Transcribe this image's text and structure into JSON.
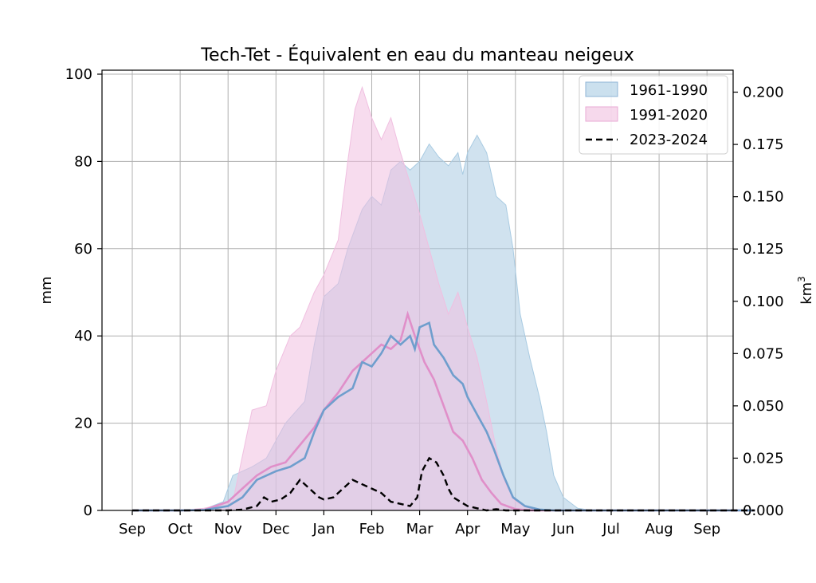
{
  "chart_data": {
    "type": "area",
    "title": "Tech-Tet - Équivalent en eau du manteau neigeux",
    "ylabel": "mm",
    "ylabel_right": "km",
    "ylabel_right_exp": "3",
    "x_tick_labels": [
      "Sep",
      "Oct",
      "Nov",
      "Dec",
      "Jan",
      "Feb",
      "Mar",
      "Apr",
      "May",
      "Jun",
      "Jul",
      "Aug",
      "Sep"
    ],
    "xlim": [
      0,
      13
    ],
    "ylim": [
      0,
      101
    ],
    "y_ticks": [
      0,
      20,
      40,
      60,
      80,
      100
    ],
    "y_ticks_right": [
      "0.000",
      "0.025",
      "0.050",
      "0.075",
      "0.100",
      "0.125",
      "0.150",
      "0.175",
      "0.200"
    ],
    "ylim_right": [
      0,
      0.2105
    ],
    "grid": true,
    "legend_position": "top-right",
    "colors": {
      "band_1961": "#a9cbe2",
      "band_1991": "#f0bfe0",
      "line_1961": "#6f9ecd",
      "line_1991": "#e08fc9",
      "line_2023": "#000000"
    },
    "legend": [
      {
        "label": "1961-1990",
        "style": "band_1961"
      },
      {
        "label": "1991-2020",
        "style": "band_1991"
      },
      {
        "label": "2023-2024",
        "style": "dashed"
      }
    ],
    "series": [
      {
        "name": "1961-1990",
        "band_upper": [
          [
            0,
            0
          ],
          [
            1,
            0
          ],
          [
            1.5,
            0.3
          ],
          [
            1.9,
            2
          ],
          [
            2.1,
            8
          ],
          [
            2.5,
            10
          ],
          [
            2.8,
            12
          ],
          [
            3.2,
            20
          ],
          [
            3.6,
            25
          ],
          [
            3.8,
            38
          ],
          [
            4.0,
            49
          ],
          [
            4.3,
            52
          ],
          [
            4.5,
            60
          ],
          [
            4.8,
            69
          ],
          [
            5.0,
            72
          ],
          [
            5.2,
            70
          ],
          [
            5.4,
            78
          ],
          [
            5.6,
            80
          ],
          [
            5.8,
            78
          ],
          [
            6.0,
            80
          ],
          [
            6.2,
            84
          ],
          [
            6.4,
            81
          ],
          [
            6.6,
            79
          ],
          [
            6.8,
            82
          ],
          [
            6.9,
            77
          ],
          [
            7.0,
            82
          ],
          [
            7.2,
            86
          ],
          [
            7.4,
            82
          ],
          [
            7.6,
            72
          ],
          [
            7.8,
            70
          ],
          [
            7.95,
            60
          ],
          [
            8.1,
            45
          ],
          [
            8.3,
            35
          ],
          [
            8.5,
            26
          ],
          [
            8.65,
            18
          ],
          [
            8.8,
            8
          ],
          [
            9.0,
            3
          ],
          [
            9.3,
            0.5
          ],
          [
            9.6,
            0
          ],
          [
            13,
            0
          ]
        ],
        "band_lower": [
          [
            0,
            0
          ],
          [
            13,
            0
          ]
        ],
        "median": [
          [
            0,
            0
          ],
          [
            1,
            0
          ],
          [
            1.5,
            0.1
          ],
          [
            2.0,
            1
          ],
          [
            2.3,
            3
          ],
          [
            2.6,
            7
          ],
          [
            3.0,
            9
          ],
          [
            3.3,
            10
          ],
          [
            3.6,
            12
          ],
          [
            3.8,
            18
          ],
          [
            4.0,
            23
          ],
          [
            4.3,
            26
          ],
          [
            4.6,
            28
          ],
          [
            4.8,
            34
          ],
          [
            5.0,
            33
          ],
          [
            5.2,
            36
          ],
          [
            5.4,
            40
          ],
          [
            5.6,
            38
          ],
          [
            5.8,
            40
          ],
          [
            5.9,
            37
          ],
          [
            6.0,
            42
          ],
          [
            6.2,
            43
          ],
          [
            6.3,
            38
          ],
          [
            6.5,
            35
          ],
          [
            6.7,
            31
          ],
          [
            6.9,
            29
          ],
          [
            7.0,
            26
          ],
          [
            7.2,
            22
          ],
          [
            7.4,
            18
          ],
          [
            7.55,
            14
          ],
          [
            7.75,
            8
          ],
          [
            7.95,
            3
          ],
          [
            8.2,
            1
          ],
          [
            8.5,
            0.2
          ],
          [
            8.8,
            0
          ],
          [
            13,
            0
          ]
        ]
      },
      {
        "name": "1991-2020",
        "band_upper": [
          [
            0,
            0
          ],
          [
            1,
            0
          ],
          [
            1.5,
            0.5
          ],
          [
            2.1,
            2
          ],
          [
            2.5,
            23
          ],
          [
            2.8,
            24
          ],
          [
            3.0,
            32
          ],
          [
            3.3,
            40
          ],
          [
            3.5,
            42
          ],
          [
            3.8,
            50
          ],
          [
            4.0,
            54
          ],
          [
            4.3,
            62
          ],
          [
            4.5,
            80
          ],
          [
            4.65,
            92
          ],
          [
            4.8,
            97
          ],
          [
            5.0,
            90
          ],
          [
            5.2,
            85
          ],
          [
            5.4,
            90
          ],
          [
            5.6,
            82
          ],
          [
            5.8,
            75
          ],
          [
            6.0,
            68
          ],
          [
            6.2,
            60
          ],
          [
            6.4,
            52
          ],
          [
            6.6,
            45
          ],
          [
            6.8,
            50
          ],
          [
            7.0,
            42
          ],
          [
            7.2,
            35
          ],
          [
            7.4,
            25
          ],
          [
            7.6,
            14
          ],
          [
            7.8,
            6
          ],
          [
            8.0,
            2
          ],
          [
            8.3,
            0.5
          ],
          [
            8.6,
            0
          ],
          [
            13,
            0
          ]
        ],
        "band_lower": [
          [
            0,
            0
          ],
          [
            13,
            0
          ]
        ],
        "median": [
          [
            0,
            0
          ],
          [
            1,
            0
          ],
          [
            1.5,
            0.1
          ],
          [
            2.0,
            2
          ],
          [
            2.3,
            5
          ],
          [
            2.6,
            8
          ],
          [
            2.9,
            10
          ],
          [
            3.2,
            11
          ],
          [
            3.5,
            15
          ],
          [
            3.8,
            19
          ],
          [
            4.0,
            23
          ],
          [
            4.3,
            27
          ],
          [
            4.6,
            32
          ],
          [
            4.8,
            34
          ],
          [
            5.0,
            36
          ],
          [
            5.2,
            38
          ],
          [
            5.4,
            37
          ],
          [
            5.6,
            39
          ],
          [
            5.75,
            45
          ],
          [
            5.9,
            40
          ],
          [
            6.1,
            34
          ],
          [
            6.3,
            30
          ],
          [
            6.5,
            24
          ],
          [
            6.7,
            18
          ],
          [
            6.9,
            16
          ],
          [
            7.1,
            12
          ],
          [
            7.3,
            7
          ],
          [
            7.5,
            4
          ],
          [
            7.7,
            1.5
          ],
          [
            8.0,
            0.3
          ],
          [
            8.3,
            0
          ],
          [
            13,
            0
          ]
        ]
      },
      {
        "name": "2023-2024",
        "values": [
          [
            0,
            0
          ],
          [
            1,
            0
          ],
          [
            2.0,
            0
          ],
          [
            2.3,
            0.2
          ],
          [
            2.6,
            1
          ],
          [
            2.75,
            3
          ],
          [
            2.9,
            2
          ],
          [
            3.1,
            2.5
          ],
          [
            3.3,
            4
          ],
          [
            3.5,
            7
          ],
          [
            3.7,
            5
          ],
          [
            3.9,
            3
          ],
          [
            4.0,
            2.5
          ],
          [
            4.2,
            3
          ],
          [
            4.4,
            5
          ],
          [
            4.6,
            7
          ],
          [
            4.8,
            6
          ],
          [
            5.0,
            5
          ],
          [
            5.2,
            4
          ],
          [
            5.4,
            2
          ],
          [
            5.6,
            1.5
          ],
          [
            5.8,
            1
          ],
          [
            5.95,
            3
          ],
          [
            6.05,
            9
          ],
          [
            6.2,
            12
          ],
          [
            6.35,
            11
          ],
          [
            6.5,
            8
          ],
          [
            6.6,
            5
          ],
          [
            6.7,
            3
          ],
          [
            6.85,
            2
          ],
          [
            7.0,
            1
          ],
          [
            7.2,
            0.5
          ],
          [
            7.4,
            0
          ],
          [
            7.6,
            0.3
          ],
          [
            7.8,
            0
          ],
          [
            13,
            0
          ]
        ]
      }
    ]
  }
}
